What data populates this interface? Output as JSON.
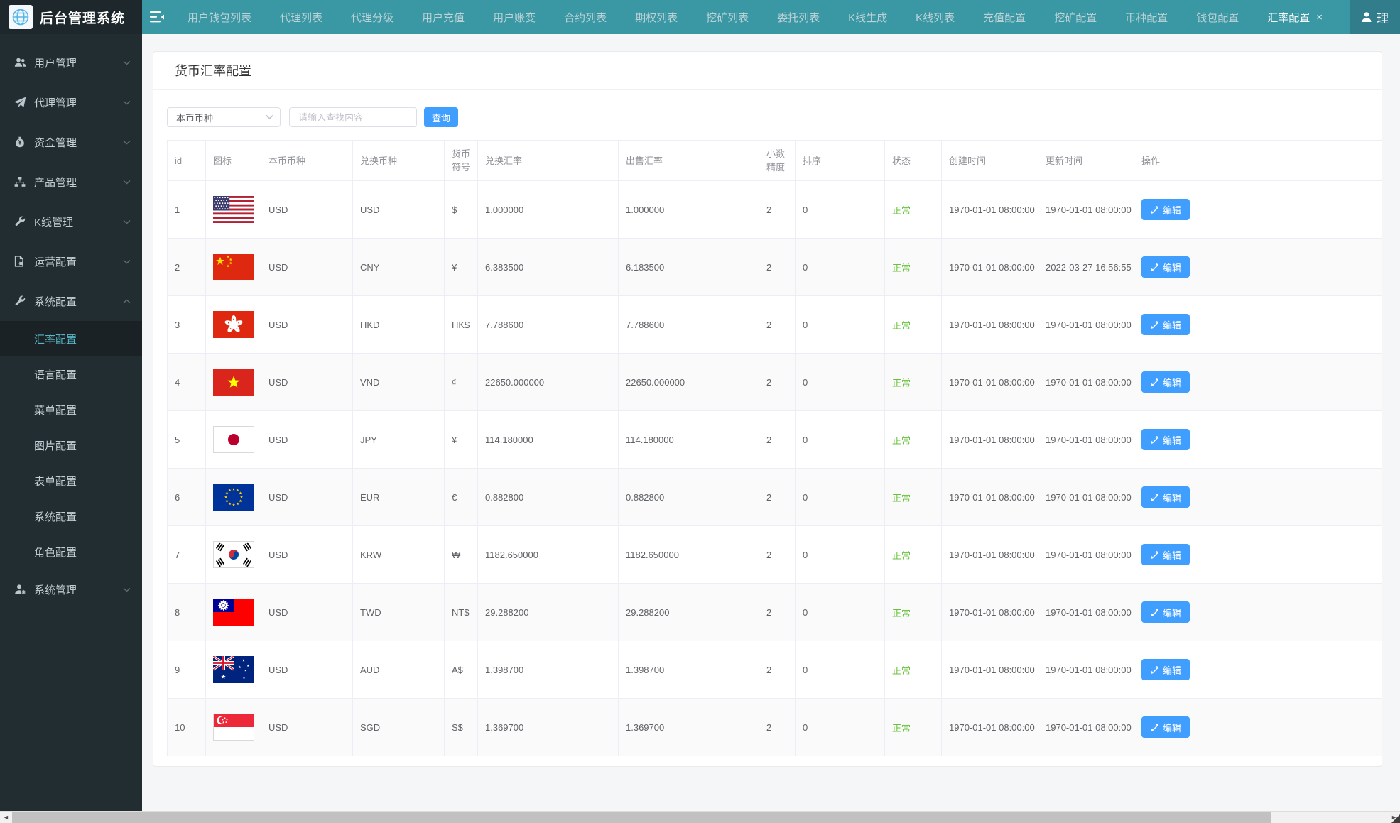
{
  "header": {
    "logo_title": "后台管理系统",
    "user_label": "理",
    "tab_close_glyph": "×",
    "tabs": [
      {
        "label": "用户钱包列表",
        "active": false
      },
      {
        "label": "代理列表",
        "active": false
      },
      {
        "label": "代理分级",
        "active": false
      },
      {
        "label": "用户充值",
        "active": false
      },
      {
        "label": "用户账变",
        "active": false
      },
      {
        "label": "合约列表",
        "active": false
      },
      {
        "label": "期权列表",
        "active": false
      },
      {
        "label": "挖矿列表",
        "active": false
      },
      {
        "label": "委托列表",
        "active": false
      },
      {
        "label": "K线生成",
        "active": false
      },
      {
        "label": "K线列表",
        "active": false
      },
      {
        "label": "充值配置",
        "active": false
      },
      {
        "label": "挖矿配置",
        "active": false
      },
      {
        "label": "币种配置",
        "active": false
      },
      {
        "label": "钱包配置",
        "active": false
      },
      {
        "label": "汇率配置",
        "active": true,
        "closable": true
      }
    ]
  },
  "sidebar": {
    "items": [
      {
        "label": "用户管理",
        "icon": "users-icon",
        "expanded": false
      },
      {
        "label": "代理管理",
        "icon": "paper-plane-icon",
        "expanded": false
      },
      {
        "label": "资金管理",
        "icon": "money-bag-icon",
        "expanded": false
      },
      {
        "label": "产品管理",
        "icon": "sitemap-icon",
        "expanded": false
      },
      {
        "label": "K线管理",
        "icon": "wrench-icon",
        "expanded": false
      },
      {
        "label": "运营配置",
        "icon": "doc-gear-icon",
        "expanded": false
      },
      {
        "label": "系统配置",
        "icon": "wrench-icon",
        "expanded": true,
        "children": [
          {
            "label": "汇率配置",
            "active": true
          },
          {
            "label": "语言配置",
            "active": false
          },
          {
            "label": "菜单配置",
            "active": false
          },
          {
            "label": "图片配置",
            "active": false
          },
          {
            "label": "表单配置",
            "active": false
          },
          {
            "label": "系统配置",
            "active": false
          },
          {
            "label": "角色配置",
            "active": false
          }
        ]
      },
      {
        "label": "系统管理",
        "icon": "user-gear-icon",
        "expanded": false
      }
    ]
  },
  "page": {
    "title": "货币汇率配置",
    "filters": {
      "currency_select_value": "本币币种",
      "search_placeholder": "请输入查找内容",
      "query_button": "查询"
    }
  },
  "table": {
    "columns": [
      "id",
      "图标",
      "本币币种",
      "兑换币种",
      "货币符号",
      "兑换汇率",
      "出售汇率",
      "小数精度",
      "排序",
      "状态",
      "创建时间",
      "更新时间",
      "操作"
    ],
    "edit_button_label": "编辑",
    "rows": [
      {
        "id": "1",
        "flag": "us",
        "base": "USD",
        "quote": "USD",
        "symbol": "$",
        "buy": "1.000000",
        "sell": "1.000000",
        "precision": "2",
        "sort": "0",
        "status": "正常",
        "created": "1970-01-01 08:00:00",
        "updated": "1970-01-01 08:00:00"
      },
      {
        "id": "2",
        "flag": "cn",
        "base": "USD",
        "quote": "CNY",
        "symbol": "¥",
        "buy": "6.383500",
        "sell": "6.183500",
        "precision": "2",
        "sort": "0",
        "status": "正常",
        "created": "1970-01-01 08:00:00",
        "updated": "2022-03-27 16:56:55"
      },
      {
        "id": "3",
        "flag": "hk",
        "base": "USD",
        "quote": "HKD",
        "symbol": "HK$",
        "buy": "7.788600",
        "sell": "7.788600",
        "precision": "2",
        "sort": "0",
        "status": "正常",
        "created": "1970-01-01 08:00:00",
        "updated": "1970-01-01 08:00:00"
      },
      {
        "id": "4",
        "flag": "vn",
        "base": "USD",
        "quote": "VND",
        "symbol": "₫",
        "buy": "22650.000000",
        "sell": "22650.000000",
        "precision": "2",
        "sort": "0",
        "status": "正常",
        "created": "1970-01-01 08:00:00",
        "updated": "1970-01-01 08:00:00"
      },
      {
        "id": "5",
        "flag": "jp",
        "base": "USD",
        "quote": "JPY",
        "symbol": "¥",
        "buy": "114.180000",
        "sell": "114.180000",
        "precision": "2",
        "sort": "0",
        "status": "正常",
        "created": "1970-01-01 08:00:00",
        "updated": "1970-01-01 08:00:00"
      },
      {
        "id": "6",
        "flag": "eu",
        "base": "USD",
        "quote": "EUR",
        "symbol": "€",
        "buy": "0.882800",
        "sell": "0.882800",
        "precision": "2",
        "sort": "0",
        "status": "正常",
        "created": "1970-01-01 08:00:00",
        "updated": "1970-01-01 08:00:00"
      },
      {
        "id": "7",
        "flag": "kr",
        "base": "USD",
        "quote": "KRW",
        "symbol": "₩",
        "buy": "1182.650000",
        "sell": "1182.650000",
        "precision": "2",
        "sort": "0",
        "status": "正常",
        "created": "1970-01-01 08:00:00",
        "updated": "1970-01-01 08:00:00"
      },
      {
        "id": "8",
        "flag": "tw",
        "base": "USD",
        "quote": "TWD",
        "symbol": "NT$",
        "buy": "29.288200",
        "sell": "29.288200",
        "precision": "2",
        "sort": "0",
        "status": "正常",
        "created": "1970-01-01 08:00:00",
        "updated": "1970-01-01 08:00:00"
      },
      {
        "id": "9",
        "flag": "au",
        "base": "USD",
        "quote": "AUD",
        "symbol": "A$",
        "buy": "1.398700",
        "sell": "1.398700",
        "precision": "2",
        "sort": "0",
        "status": "正常",
        "created": "1970-01-01 08:00:00",
        "updated": "1970-01-01 08:00:00"
      },
      {
        "id": "10",
        "flag": "sg",
        "base": "USD",
        "quote": "SGD",
        "symbol": "S$",
        "buy": "1.369700",
        "sell": "1.369700",
        "precision": "2",
        "sort": "0",
        "status": "正常",
        "created": "1970-01-01 08:00:00",
        "updated": "1970-01-01 08:00:00"
      }
    ]
  },
  "colors": {
    "navbar_teal": "#3a98a5",
    "sidebar_dark": "#222d32",
    "accent_blue": "#409eff",
    "status_green": "#67c23a",
    "active_submenu_text": "#57b5c5"
  }
}
